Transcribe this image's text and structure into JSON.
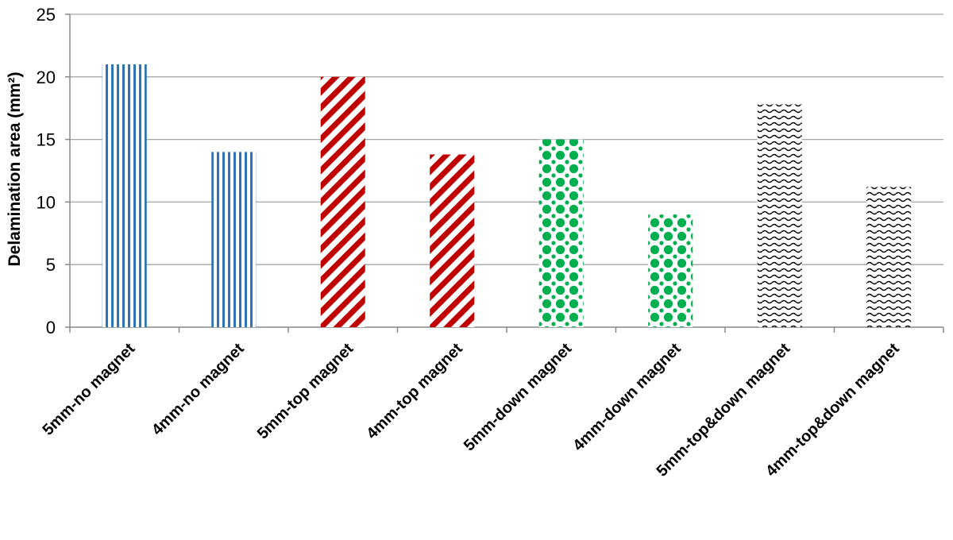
{
  "chart_data": {
    "type": "bar",
    "title": "",
    "xlabel": "",
    "ylabel": "Delamination area (mm²)",
    "ylim": [
      0,
      25
    ],
    "yticks": [
      0,
      5,
      10,
      15,
      20,
      25
    ],
    "grid": true,
    "legend": "none",
    "categories": [
      "5mm-no magnet",
      "4mm-no magnet",
      "5mm-top magnet",
      "4mm-top magnet",
      "5mm-down magnet",
      "4mm-down magnet",
      "5mm-top&down magnet",
      "4mm-top&down magnet"
    ],
    "values": [
      21.0,
      14.0,
      20.0,
      13.8,
      15.0,
      9.0,
      17.8,
      11.2
    ],
    "bar_styles": [
      {
        "pattern": "vertical-stripes",
        "color": "#2e75b6"
      },
      {
        "pattern": "vertical-stripes",
        "color": "#2e75b6"
      },
      {
        "pattern": "diagonal-stripes",
        "color": "#c00000"
      },
      {
        "pattern": "diagonal-stripes",
        "color": "#c00000"
      },
      {
        "pattern": "dots",
        "color": "#00b050"
      },
      {
        "pattern": "dots",
        "color": "#00b050"
      },
      {
        "pattern": "waves",
        "color": "#000000"
      },
      {
        "pattern": "waves",
        "color": "#000000"
      }
    ]
  }
}
